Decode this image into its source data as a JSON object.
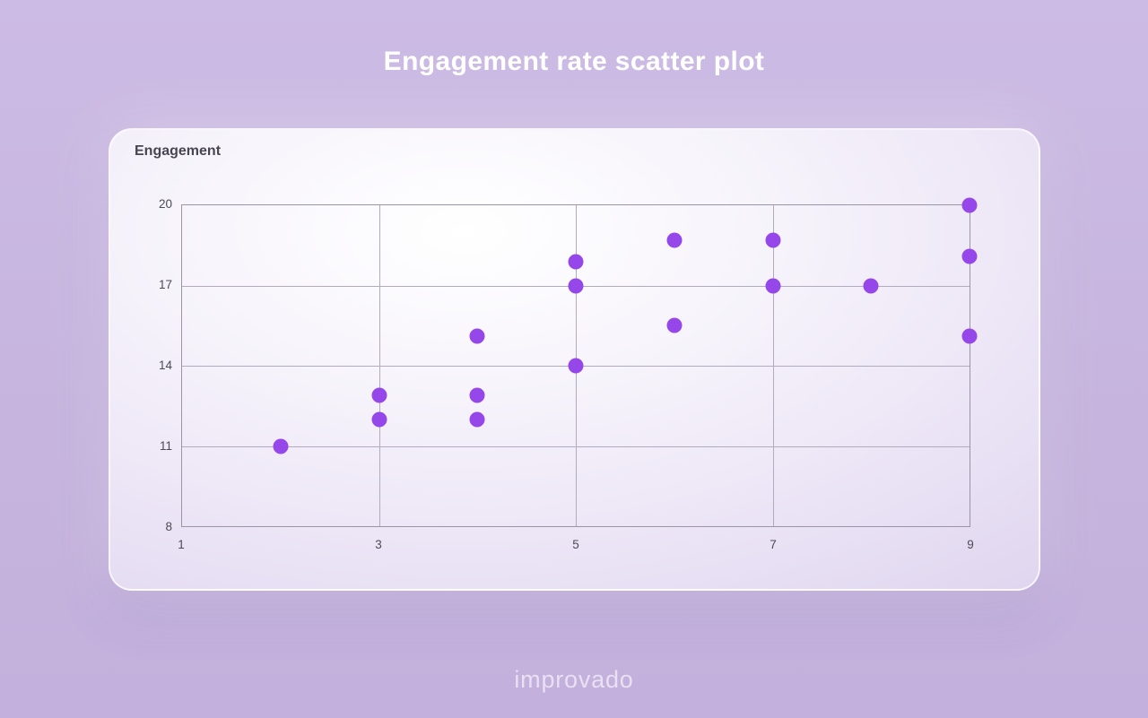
{
  "page": {
    "title": "Engagement rate scatter plot",
    "logo": "improvado"
  },
  "chart_data": {
    "type": "scatter",
    "title": "Engagement rate scatter plot",
    "xlabel": "",
    "ylabel": "Engagement",
    "xlim": [
      1,
      9
    ],
    "ylim": [
      8,
      20
    ],
    "x_ticks": [
      1,
      3,
      5,
      7,
      9
    ],
    "y_ticks": [
      8,
      11,
      14,
      17,
      20
    ],
    "grid": true,
    "legend": "none",
    "point_color": "#9647e9",
    "points": [
      {
        "x": 2,
        "y": 11
      },
      {
        "x": 3,
        "y": 12.9
      },
      {
        "x": 3,
        "y": 12
      },
      {
        "x": 4,
        "y": 15.1
      },
      {
        "x": 4,
        "y": 12.9
      },
      {
        "x": 4,
        "y": 12
      },
      {
        "x": 5,
        "y": 17.9
      },
      {
        "x": 5,
        "y": 17
      },
      {
        "x": 5,
        "y": 14
      },
      {
        "x": 6,
        "y": 18.7
      },
      {
        "x": 6,
        "y": 15.5
      },
      {
        "x": 7,
        "y": 18.7
      },
      {
        "x": 7,
        "y": 17
      },
      {
        "x": 8,
        "y": 17
      },
      {
        "x": 9,
        "y": 20
      },
      {
        "x": 9,
        "y": 18.1
      },
      {
        "x": 9,
        "y": 15.1
      }
    ]
  },
  "colors": {
    "accent_purple": "#9647e9",
    "page_background": "#c6b4de",
    "title_text": "#ffffff"
  }
}
